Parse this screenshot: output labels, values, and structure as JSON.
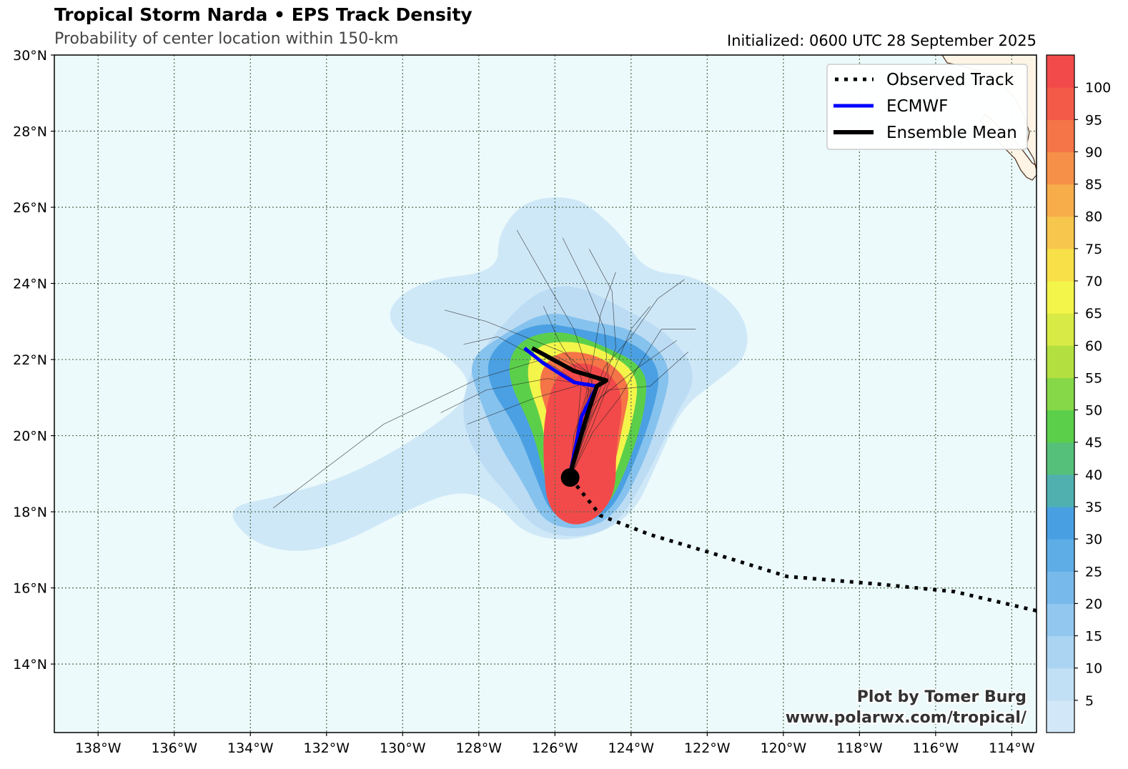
{
  "header": {
    "title": "Tropical Storm Narda • EPS Track Density",
    "subtitle": "Probability of center location within 150-km",
    "initialized": "Initialized: 0600 UTC 28 September 2025"
  },
  "credit": {
    "line1": "Plot by Tomer Burg",
    "line2": "www.polarwx.com/tropical/"
  },
  "legend": {
    "placement": "top-right",
    "items": [
      {
        "label": "Observed Track",
        "style": "dotted",
        "color": "#000000"
      },
      {
        "label": "ECMWF",
        "style": "solid",
        "color": "#0000ff"
      },
      {
        "label": "Ensemble Mean",
        "style": "solid",
        "color": "#000000"
      }
    ]
  },
  "map_data": {
    "projection": "equirectangular",
    "lon_range": [
      -139.15,
      -113.35
    ],
    "lat_range": [
      12.2,
      30
    ],
    "lon_ticks": [
      {
        "lon": -138,
        "label": "138°W"
      },
      {
        "lon": -136,
        "label": "136°W"
      },
      {
        "lon": -134,
        "label": "134°W"
      },
      {
        "lon": -132,
        "label": "132°W"
      },
      {
        "lon": -130,
        "label": "130°W"
      },
      {
        "lon": -128,
        "label": "128°W"
      },
      {
        "lon": -126,
        "label": "126°W"
      },
      {
        "lon": -124,
        "label": "124°W"
      },
      {
        "lon": -122,
        "label": "122°W"
      },
      {
        "lon": -120,
        "label": "120°W"
      },
      {
        "lon": -118,
        "label": "118°W"
      },
      {
        "lon": -116,
        "label": "116°W"
      },
      {
        "lon": -114,
        "label": "114°W"
      }
    ],
    "lat_ticks": [
      {
        "lat": 14,
        "label": "14°N"
      },
      {
        "lat": 16,
        "label": "16°N"
      },
      {
        "lat": 18,
        "label": "18°N"
      },
      {
        "lat": 20,
        "label": "20°N"
      },
      {
        "lat": 22,
        "label": "22°N"
      },
      {
        "lat": 24,
        "label": "24°N"
      },
      {
        "lat": 26,
        "label": "26°N"
      },
      {
        "lat": 28,
        "label": "28°N"
      },
      {
        "lat": 30,
        "label": "30°N"
      }
    ],
    "grid": true,
    "ocean_color": "#ecfafb",
    "land_color": "#fdf4e6",
    "colorbar": {
      "ticks": [
        "5",
        "10",
        "15",
        "20",
        "25",
        "30",
        "35",
        "40",
        "45",
        "50",
        "55",
        "60",
        "65",
        "70",
        "75",
        "80",
        "85",
        "90",
        "95",
        "100"
      ],
      "colors": [
        "#d2e8f8",
        "#c1e0f6",
        "#aad4f2",
        "#92c8ef",
        "#78b9eb",
        "#5fade7",
        "#48a0e2",
        "#50b0b0",
        "#55c07a",
        "#5ccf4a",
        "#86d848",
        "#b3e040",
        "#d8ea45",
        "#f4f54a",
        "#f7e048",
        "#f7c64c",
        "#f6ad4a",
        "#f69048",
        "#f57448",
        "#f45a48",
        "#f24a4a"
      ]
    },
    "density_blobs": [
      {
        "level": 5,
        "color": "#cfe8f8",
        "points": [
          [
            -133.3,
            18.4
          ],
          [
            -131.5,
            18.9
          ],
          [
            -129.5,
            20.0
          ],
          [
            -128.0,
            21.2
          ],
          [
            -129.0,
            22.3
          ],
          [
            -130.0,
            22.5
          ],
          [
            -130.5,
            23.3
          ],
          [
            -129.5,
            24.1
          ],
          [
            -127.5,
            24.3
          ],
          [
            -127.5,
            25.3
          ],
          [
            -126.8,
            26.2
          ],
          [
            -125.5,
            26.3
          ],
          [
            -124.8,
            25.8
          ],
          [
            -124.2,
            25.2
          ],
          [
            -123.6,
            24.3
          ],
          [
            -122.2,
            24.2
          ],
          [
            -121.0,
            23.2
          ],
          [
            -120.9,
            22.1
          ],
          [
            -121.8,
            21.4
          ],
          [
            -122.7,
            20.7
          ],
          [
            -123.3,
            19.3
          ],
          [
            -124.0,
            17.8
          ],
          [
            -125.5,
            17.2
          ],
          [
            -126.8,
            17.4
          ],
          [
            -127.5,
            18.2
          ],
          [
            -128.5,
            18.6
          ],
          [
            -130.0,
            18.0
          ],
          [
            -131.5,
            17.2
          ],
          [
            -132.8,
            16.9
          ],
          [
            -134.0,
            17.2
          ],
          [
            -134.7,
            18.1
          ]
        ]
      },
      {
        "level": 10,
        "color": "#bcdcf4",
        "points": [
          [
            -128.5,
            20.5
          ],
          [
            -128.2,
            21.8
          ],
          [
            -127.5,
            22.8
          ],
          [
            -126.5,
            23.8
          ],
          [
            -125.5,
            24.0
          ],
          [
            -124.3,
            23.4
          ],
          [
            -123.0,
            22.7
          ],
          [
            -122.2,
            21.6
          ],
          [
            -122.9,
            20.4
          ],
          [
            -123.6,
            18.9
          ],
          [
            -124.4,
            17.6
          ],
          [
            -125.4,
            17.3
          ],
          [
            -126.5,
            17.5
          ],
          [
            -127.2,
            18.4
          ],
          [
            -128.0,
            19.3
          ]
        ]
      },
      {
        "level": 20,
        "color": "#86c2ee",
        "points": [
          [
            -128.0,
            21.0
          ],
          [
            -128.3,
            22.0
          ],
          [
            -127.3,
            22.7
          ],
          [
            -126.2,
            23.3
          ],
          [
            -125.1,
            23.0
          ],
          [
            -123.9,
            22.8
          ],
          [
            -122.9,
            21.9
          ],
          [
            -123.2,
            20.6
          ],
          [
            -123.7,
            19.2
          ],
          [
            -124.4,
            17.9
          ],
          [
            -125.3,
            17.5
          ],
          [
            -126.3,
            17.7
          ],
          [
            -126.8,
            18.7
          ],
          [
            -127.5,
            19.8
          ]
        ]
      },
      {
        "level": 30,
        "color": "#4aa0e2",
        "points": [
          [
            -127.8,
            21.4
          ],
          [
            -127.7,
            22.3
          ],
          [
            -126.5,
            23.0
          ],
          [
            -125.3,
            22.8
          ],
          [
            -124.0,
            22.5
          ],
          [
            -123.2,
            21.8
          ],
          [
            -123.4,
            20.7
          ],
          [
            -123.9,
            19.3
          ],
          [
            -124.5,
            18.0
          ],
          [
            -125.3,
            17.7
          ],
          [
            -126.1,
            17.9
          ],
          [
            -126.5,
            18.9
          ],
          [
            -127.0,
            20.2
          ]
        ]
      },
      {
        "level": 40,
        "color": "#5ccf4a",
        "points": [
          [
            -127.3,
            21.6
          ],
          [
            -127.0,
            22.5
          ],
          [
            -125.9,
            22.8
          ],
          [
            -124.8,
            22.4
          ],
          [
            -123.6,
            21.8
          ],
          [
            -123.6,
            20.8
          ],
          [
            -124.0,
            19.4
          ],
          [
            -124.6,
            18.1
          ],
          [
            -125.3,
            17.8
          ],
          [
            -126.0,
            18.0
          ],
          [
            -126.3,
            19.0
          ],
          [
            -126.6,
            20.2
          ]
        ]
      },
      {
        "level": 60,
        "color": "#f4f54a",
        "points": [
          [
            -126.8,
            21.6
          ],
          [
            -126.5,
            22.4
          ],
          [
            -125.5,
            22.5
          ],
          [
            -124.6,
            22.2
          ],
          [
            -123.8,
            21.6
          ],
          [
            -123.9,
            20.6
          ],
          [
            -124.3,
            19.3
          ],
          [
            -124.7,
            18.2
          ],
          [
            -125.3,
            17.9
          ],
          [
            -125.9,
            18.1
          ],
          [
            -126.2,
            19.1
          ],
          [
            -126.3,
            20.3
          ]
        ]
      },
      {
        "level": 90,
        "color": "#f57448",
        "points": [
          [
            -126.5,
            21.5
          ],
          [
            -126.0,
            22.2
          ],
          [
            -125.2,
            22.2
          ],
          [
            -124.5,
            21.9
          ],
          [
            -124.0,
            21.3
          ],
          [
            -124.2,
            20.4
          ],
          [
            -124.4,
            19.3
          ],
          [
            -124.8,
            18.2
          ],
          [
            -125.4,
            17.9
          ],
          [
            -125.9,
            18.2
          ],
          [
            -126.1,
            19.1
          ],
          [
            -126.1,
            20.3
          ]
        ]
      },
      {
        "level": 100,
        "color": "#f24a4a",
        "points": [
          [
            -126.1,
            21.3
          ],
          [
            -125.7,
            21.9
          ],
          [
            -125.0,
            21.9
          ],
          [
            -124.4,
            21.5
          ],
          [
            -124.2,
            20.8
          ],
          [
            -124.4,
            19.7
          ],
          [
            -124.4,
            18.5
          ],
          [
            -124.9,
            17.8
          ],
          [
            -125.6,
            17.6
          ],
          [
            -126.2,
            18.1
          ],
          [
            -126.3,
            19.2
          ],
          [
            -126.3,
            20.3
          ]
        ]
      }
    ],
    "observed_track": [
      [
        -113.35,
        15.4
      ],
      [
        -115.5,
        15.9
      ],
      [
        -117.5,
        16.1
      ],
      [
        -119.9,
        16.3
      ],
      [
        -121.5,
        16.8
      ],
      [
        -123.5,
        17.4
      ],
      [
        -124.8,
        17.9
      ],
      [
        -125.6,
        18.9
      ]
    ],
    "ecmwf_track": [
      [
        -125.6,
        19.0
      ],
      [
        -125.3,
        20.5
      ],
      [
        -124.9,
        21.3
      ],
      [
        -125.5,
        21.4
      ],
      [
        -126.3,
        21.9
      ],
      [
        -126.8,
        22.3
      ]
    ],
    "ensemble_mean_track": [
      [
        -125.6,
        19.0
      ],
      [
        -125.2,
        20.4
      ],
      [
        -124.9,
        21.3
      ],
      [
        -124.65,
        21.45
      ],
      [
        -125.5,
        21.7
      ],
      [
        -126.6,
        22.3
      ]
    ],
    "current_position": {
      "lon": -125.6,
      "lat": 18.9
    },
    "member_tracks": [
      [
        [
          -125.6,
          18.9
        ],
        [
          -125.3,
          20.2
        ],
        [
          -124.8,
          21.4
        ],
        [
          -125.8,
          22.2
        ],
        [
          -127.8,
          23.0
        ],
        [
          -128.9,
          23.3
        ]
      ],
      [
        [
          -125.6,
          18.9
        ],
        [
          -125.2,
          20.4
        ],
        [
          -125.0,
          21.6
        ],
        [
          -126.0,
          22.1
        ],
        [
          -128.0,
          21.5
        ],
        [
          -130.5,
          20.3
        ],
        [
          -133.4,
          18.1
        ]
      ],
      [
        [
          -125.6,
          18.9
        ],
        [
          -125.4,
          20.1
        ],
        [
          -125.0,
          21.3
        ],
        [
          -125.5,
          22.8
        ],
        [
          -126.2,
          24.0
        ],
        [
          -127.0,
          25.4
        ]
      ],
      [
        [
          -125.6,
          18.9
        ],
        [
          -125.1,
          20.3
        ],
        [
          -124.6,
          21.5
        ],
        [
          -124.7,
          22.8
        ],
        [
          -125.2,
          24.0
        ],
        [
          -125.8,
          25.2
        ]
      ],
      [
        [
          -125.6,
          18.9
        ],
        [
          -125.0,
          20.3
        ],
        [
          -124.5,
          21.6
        ],
        [
          -124.0,
          22.8
        ],
        [
          -123.5,
          23.4
        ]
      ],
      [
        [
          -125.6,
          18.9
        ],
        [
          -125.3,
          20.0
        ],
        [
          -124.8,
          21.0
        ],
        [
          -123.8,
          21.8
        ],
        [
          -122.8,
          22.5
        ]
      ],
      [
        [
          -125.6,
          18.9
        ],
        [
          -125.2,
          20.1
        ],
        [
          -124.9,
          21.3
        ],
        [
          -126.2,
          21.5
        ],
        [
          -127.8,
          21.2
        ],
        [
          -129.0,
          20.6
        ]
      ],
      [
        [
          -125.6,
          18.9
        ],
        [
          -125.4,
          20.2
        ],
        [
          -125.1,
          21.2
        ],
        [
          -126.0,
          21.8
        ],
        [
          -127.5,
          22.6
        ],
        [
          -128.4,
          22.4
        ]
      ],
      [
        [
          -125.6,
          18.9
        ],
        [
          -125.2,
          20.4
        ],
        [
          -124.7,
          21.8
        ],
        [
          -124.0,
          22.6
        ],
        [
          -123.3,
          23.6
        ],
        [
          -122.6,
          24.1
        ]
      ],
      [
        [
          -125.6,
          18.9
        ],
        [
          -125.5,
          20.0
        ],
        [
          -125.2,
          21.0
        ],
        [
          -125.0,
          22.0
        ],
        [
          -124.8,
          23.2
        ],
        [
          -124.4,
          24.3
        ]
      ],
      [
        [
          -125.6,
          18.9
        ],
        [
          -125.3,
          20.5
        ],
        [
          -124.6,
          21.2
        ],
        [
          -123.5,
          21.3
        ],
        [
          -122.5,
          22.2
        ]
      ],
      [
        [
          -125.6,
          18.9
        ],
        [
          -125.0,
          20.1
        ],
        [
          -124.3,
          21.0
        ],
        [
          -123.7,
          22.0
        ],
        [
          -123.2,
          22.8
        ],
        [
          -122.3,
          22.8
        ]
      ],
      [
        [
          -125.6,
          18.9
        ],
        [
          -125.4,
          20.3
        ],
        [
          -125.3,
          21.5
        ],
        [
          -125.9,
          22.5
        ],
        [
          -126.3,
          23.4
        ]
      ],
      [
        [
          -125.6,
          18.9
        ],
        [
          -125.2,
          20.2
        ],
        [
          -125.1,
          21.4
        ],
        [
          -126.5,
          21.0
        ],
        [
          -128.3,
          20.3
        ]
      ],
      [
        [
          -125.6,
          18.9
        ],
        [
          -125.3,
          19.9
        ],
        [
          -124.9,
          21.0
        ],
        [
          -124.4,
          22.3
        ],
        [
          -124.5,
          23.8
        ],
        [
          -125.1,
          24.9
        ]
      ]
    ]
  }
}
